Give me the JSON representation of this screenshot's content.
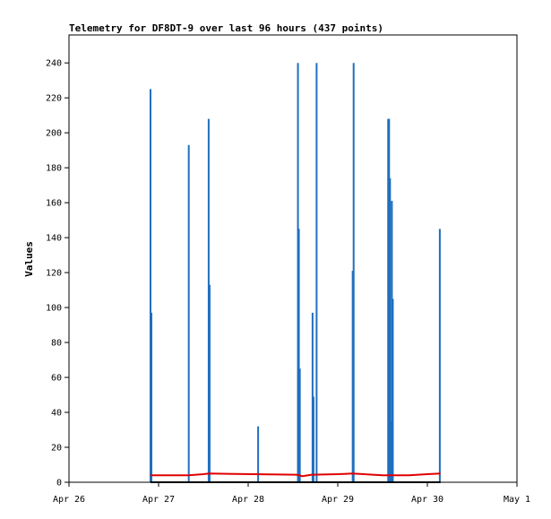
{
  "chart_data": {
    "type": "bar",
    "title": "Telemetry for DF8DT-9 over last 96 hours (437 points)",
    "xlabel": "",
    "ylabel": "Values",
    "xlim": [
      "2025-04-26T00:00",
      "2025-05-01T00:00"
    ],
    "ylim": [
      0,
      256
    ],
    "x_ticks": [
      "Apr 26",
      "Apr 27",
      "Apr 28",
      "Apr 29",
      "Apr 30",
      "May 1"
    ],
    "y_ticks": [
      0,
      20,
      40,
      60,
      80,
      100,
      120,
      140,
      160,
      180,
      200,
      220,
      240
    ],
    "grid": false,
    "legend": "none",
    "series": [
      {
        "color": "#1f6fbf",
        "mark": "impulse",
        "points": [
          {
            "x": "2025-04-26T21:50",
            "y": 225
          },
          {
            "x": "2025-04-26T22:05",
            "y": 97
          },
          {
            "x": "2025-04-27T08:05",
            "y": 193
          },
          {
            "x": "2025-04-27T13:25",
            "y": 208
          },
          {
            "x": "2025-04-27T13:40",
            "y": 113
          },
          {
            "x": "2025-04-28T02:40",
            "y": 32
          },
          {
            "x": "2025-04-28T13:20",
            "y": 240
          },
          {
            "x": "2025-04-28T13:35",
            "y": 145
          },
          {
            "x": "2025-04-28T13:50",
            "y": 65
          },
          {
            "x": "2025-04-28T17:15",
            "y": 97
          },
          {
            "x": "2025-04-28T17:30",
            "y": 49
          },
          {
            "x": "2025-04-28T18:20",
            "y": 240
          },
          {
            "x": "2025-04-29T04:00",
            "y": 121
          },
          {
            "x": "2025-04-29T04:15",
            "y": 240
          },
          {
            "x": "2025-04-29T13:30",
            "y": 208
          },
          {
            "x": "2025-04-29T13:45",
            "y": 208
          },
          {
            "x": "2025-04-29T14:00",
            "y": 174
          },
          {
            "x": "2025-04-29T14:15",
            "y": 35
          },
          {
            "x": "2025-04-29T14:30",
            "y": 161
          },
          {
            "x": "2025-04-29T14:45",
            "y": 105
          },
          {
            "x": "2025-04-30T03:20",
            "y": 145
          }
        ]
      },
      {
        "color": "#e00000",
        "mark": "line",
        "points": [
          {
            "x": "2025-04-26T21:50",
            "y": 4
          },
          {
            "x": "2025-04-27T08:00",
            "y": 4
          },
          {
            "x": "2025-04-27T12:00",
            "y": 4.6
          },
          {
            "x": "2025-04-27T13:30",
            "y": 5
          },
          {
            "x": "2025-04-28T13:00",
            "y": 4.3
          },
          {
            "x": "2025-04-28T14:30",
            "y": 3.5
          },
          {
            "x": "2025-04-28T17:00",
            "y": 4.3
          },
          {
            "x": "2025-04-29T00:00",
            "y": 4.6
          },
          {
            "x": "2025-04-29T04:00",
            "y": 5
          },
          {
            "x": "2025-04-29T12:00",
            "y": 4
          },
          {
            "x": "2025-04-29T19:00",
            "y": 4
          },
          {
            "x": "2025-04-30T00:00",
            "y": 4.6
          },
          {
            "x": "2025-04-30T03:30",
            "y": 5
          }
        ]
      },
      {
        "color": "#000000",
        "mark": "line",
        "points": [
          {
            "x": "2025-04-26T21:50",
            "y": 0
          },
          {
            "x": "2025-04-30T03:30",
            "y": 0
          }
        ]
      }
    ]
  }
}
